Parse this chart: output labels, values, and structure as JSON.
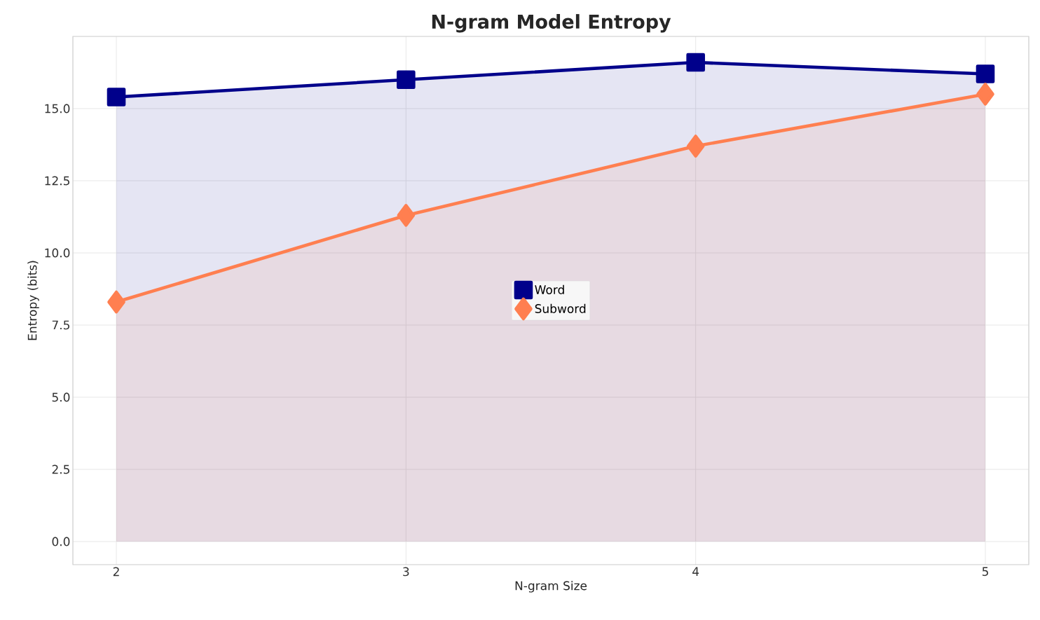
{
  "chart_data": {
    "type": "area",
    "title": "N-gram Model Entropy",
    "xlabel": "N-gram Size",
    "ylabel": "Entropy (bits)",
    "x": [
      2,
      3,
      4,
      5
    ],
    "series": [
      {
        "name": "Word",
        "color": "#00008b",
        "marker": "square",
        "values": [
          15.4,
          16.0,
          16.6,
          16.2
        ]
      },
      {
        "name": "Subword",
        "color": "#ff7f50",
        "marker": "diamond",
        "values": [
          8.3,
          11.3,
          13.7,
          15.5
        ]
      }
    ],
    "xlim": [
      1.85,
      5.15
    ],
    "ylim": [
      -0.8,
      17.5
    ],
    "xticks": [
      2,
      3,
      4,
      5
    ],
    "yticks": [
      {
        "value": 0,
        "label": "0.0"
      },
      {
        "value": 2.5,
        "label": "2.5"
      },
      {
        "value": 5,
        "label": "5.0"
      },
      {
        "value": 7.5,
        "label": "7.5"
      },
      {
        "value": 10,
        "label": "10.0"
      },
      {
        "value": 12.5,
        "label": "12.5"
      },
      {
        "value": 15,
        "label": "15.0"
      }
    ],
    "grid": true,
    "legend": "center",
    "line_style": "solid"
  }
}
